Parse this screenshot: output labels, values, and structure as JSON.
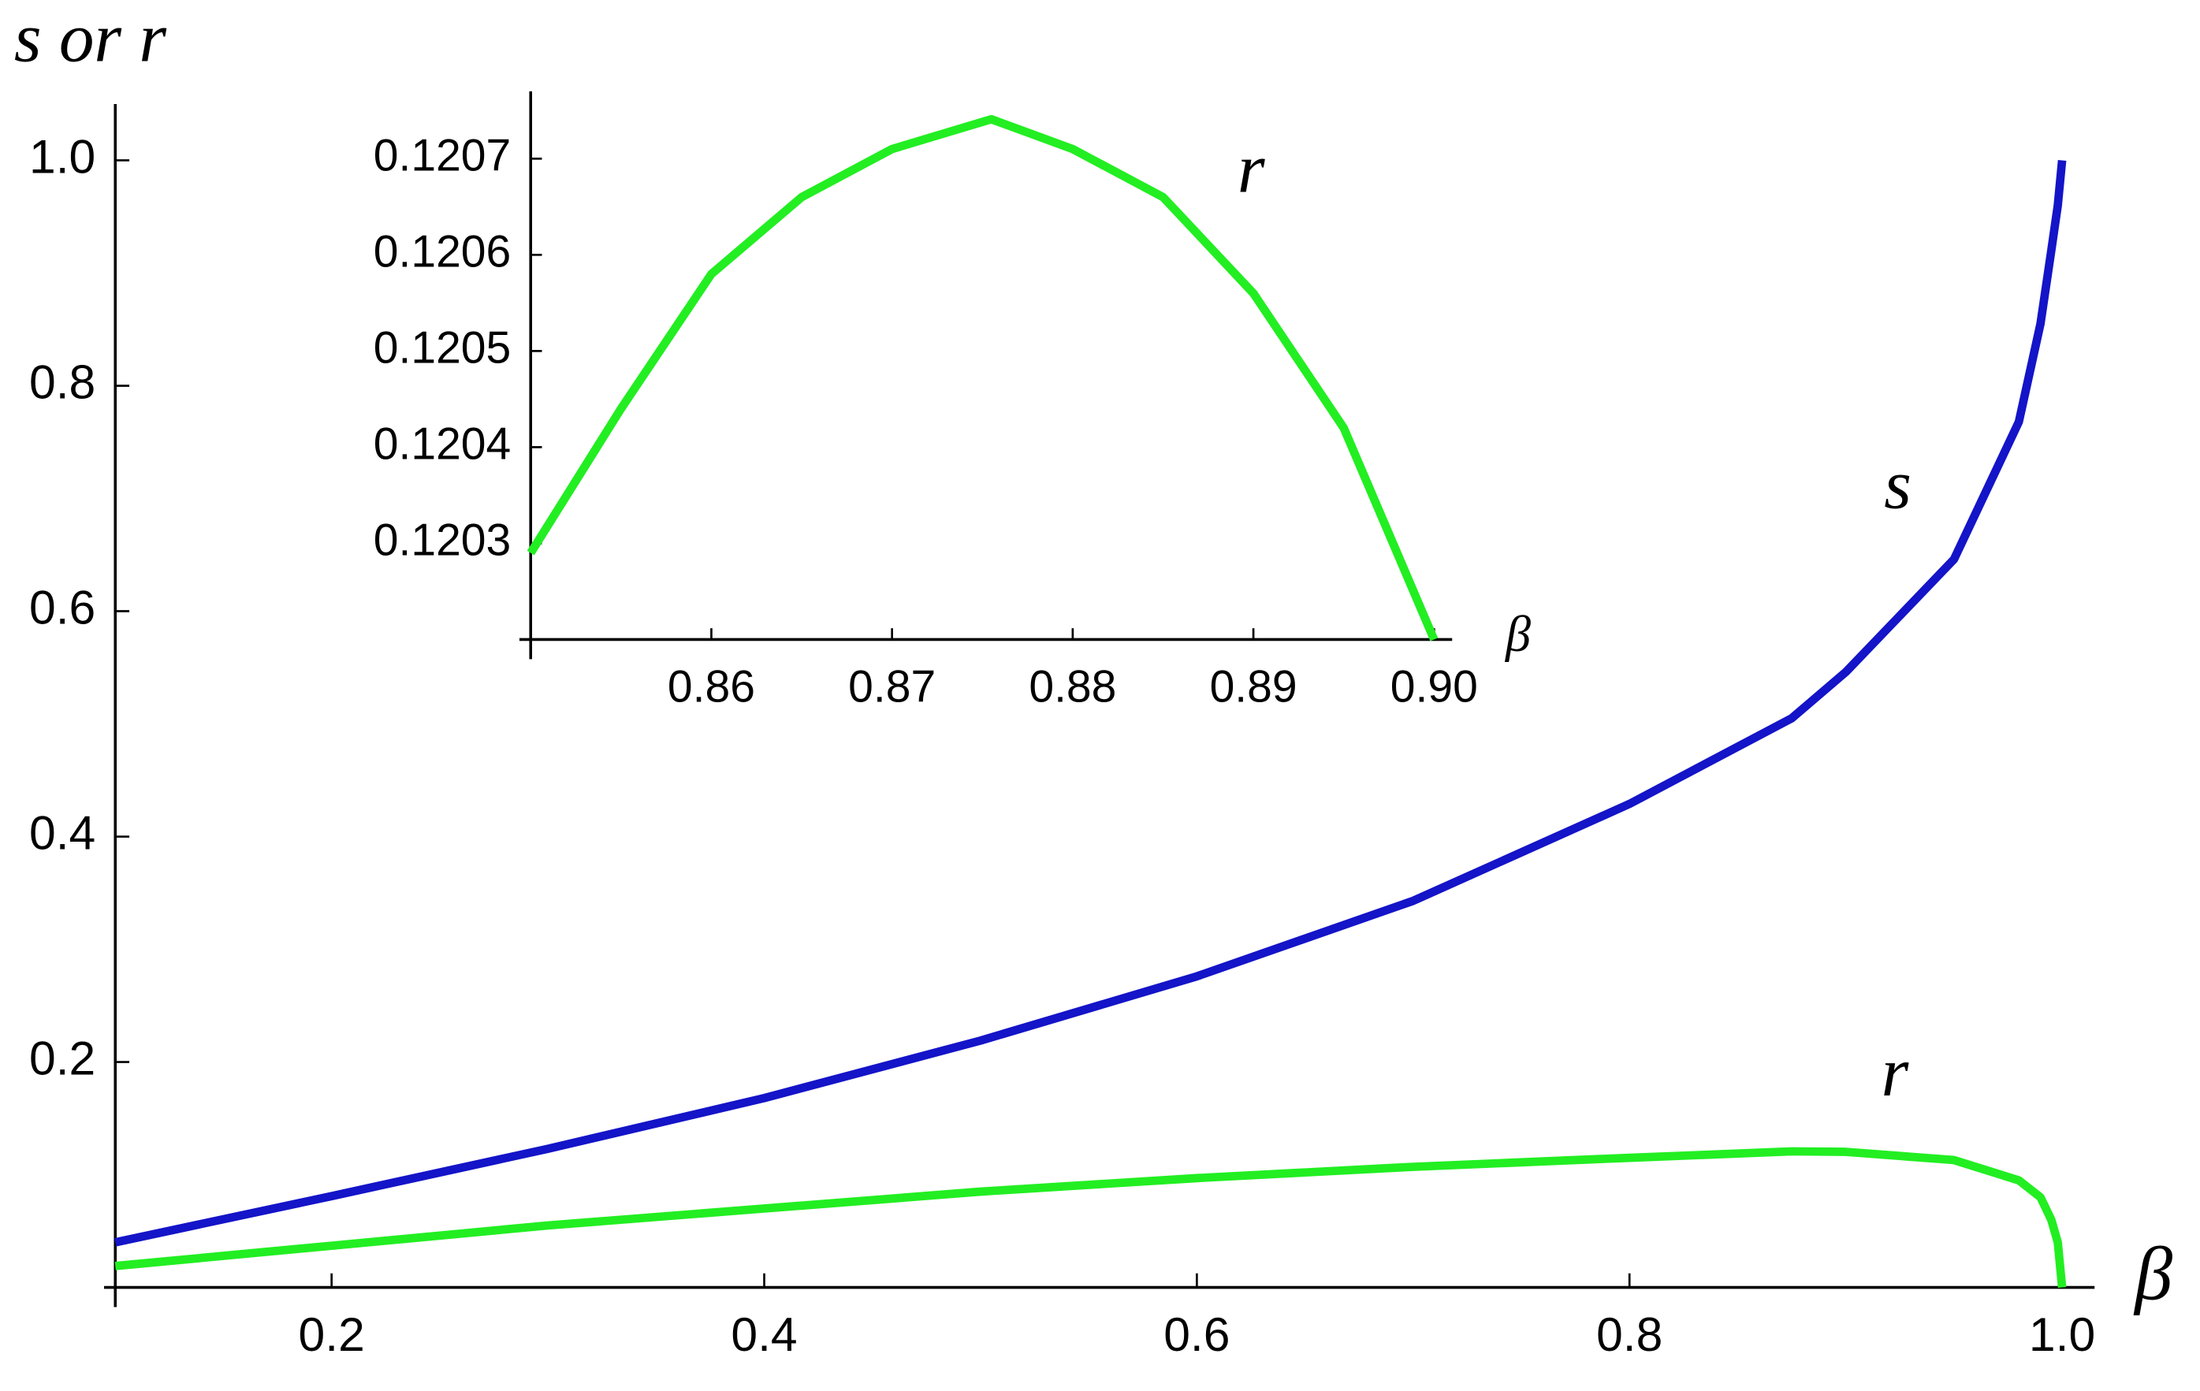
{
  "chart_data": [
    {
      "type": "line",
      "x_label": "β",
      "y_label": "s or r",
      "xlim": [
        0.1,
        1.015
      ],
      "ylim": [
        0,
        1.05
      ],
      "xticks": [
        0.2,
        0.4,
        0.6,
        0.8,
        {
          "value": 1.0,
          "label": "1.0"
        }
      ],
      "yticks": [
        0.2,
        0.4,
        0.6,
        0.8,
        {
          "value": 1.0,
          "label": "1.0"
        }
      ],
      "x": [
        0.1,
        0.2,
        0.3,
        0.4,
        0.5,
        0.6,
        0.7,
        0.8,
        0.875,
        0.9,
        0.95,
        0.98,
        0.99,
        0.995,
        0.998,
        1.0
      ],
      "series": [
        {
          "name": "s",
          "color": "#1414c8",
          "label_color": "#1a1acc",
          "values": [
            0.04,
            0.081,
            0.123,
            0.168,
            0.219,
            0.276,
            0.343,
            0.429,
            0.505,
            0.546,
            0.646,
            0.768,
            0.855,
            0.92,
            0.96,
            1.0
          ]
        },
        {
          "name": "r",
          "color": "#22ee22",
          "label_color": "#2aaa4a",
          "values": [
            0.019,
            0.037,
            0.055,
            0.07,
            0.085,
            0.097,
            0.107,
            0.115,
            0.1207,
            0.1203,
            0.113,
            0.095,
            0.08,
            0.06,
            0.04,
            0.0
          ]
        }
      ]
    },
    {
      "type": "line",
      "x_label": "β",
      "xlim": [
        0.85,
        0.901
      ],
      "ylim": [
        0.1202,
        0.12077
      ],
      "xticks": [
        0.86,
        0.87,
        0.88,
        0.89,
        {
          "value": 0.9,
          "label": "0.90"
        }
      ],
      "yticks": [
        0.1203,
        0.1204,
        0.1205,
        0.1206,
        0.1207
      ],
      "x": [
        0.85,
        0.855,
        0.86,
        0.865,
        0.87,
        0.8755,
        0.88,
        0.885,
        0.89,
        0.895,
        0.9
      ],
      "series": [
        {
          "name": "r",
          "color": "#22ee22",
          "label_color": "#2aaa4a",
          "values": [
            0.12029,
            0.12044,
            0.12058,
            0.12066,
            0.12071,
            0.120741,
            0.12071,
            0.12066,
            0.12056,
            0.12042,
            0.1202
          ]
        }
      ]
    }
  ]
}
